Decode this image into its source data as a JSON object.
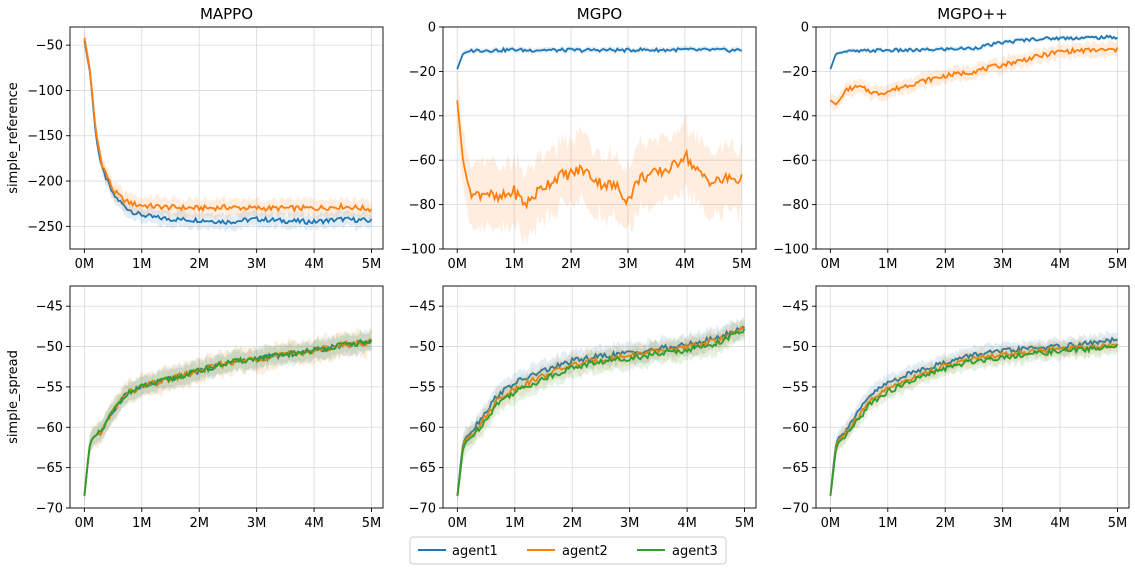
{
  "colors": {
    "agent1": "#1f77b4",
    "agent2": "#ff7f0e",
    "agent3": "#2ca02c"
  },
  "legend": {
    "items": [
      "agent1",
      "agent2",
      "agent3"
    ],
    "placement": "bottom-center"
  },
  "xticks": [
    "0M",
    "1M",
    "2M",
    "3M",
    "4M",
    "5M"
  ],
  "chart_data": [
    {
      "type": "line",
      "title": "MAPPO",
      "ylabel": "simple_reference",
      "xlim": [
        -0.25,
        5.2
      ],
      "ylim": [
        -275,
        -30
      ],
      "yticks": [
        -50,
        -100,
        -150,
        -200,
        -250
      ],
      "x": [
        0.0,
        0.1,
        0.2,
        0.3,
        0.5,
        0.7,
        0.9,
        1.2,
        1.5,
        2.0,
        2.5,
        3.0,
        3.5,
        4.0,
        4.5,
        5.0
      ],
      "series": [
        {
          "name": "agent1",
          "values": [
            -45,
            -80,
            -150,
            -185,
            -215,
            -228,
            -236,
            -240,
            -242,
            -243,
            -245,
            -242,
            -244,
            -245,
            -242,
            -244
          ],
          "band": 10
        },
        {
          "name": "agent2",
          "values": [
            -42,
            -78,
            -145,
            -180,
            -210,
            -222,
            -226,
            -228,
            -229,
            -230,
            -229,
            -230,
            -230,
            -230,
            -228,
            -231
          ],
          "band": 12
        }
      ]
    },
    {
      "type": "line",
      "title": "MGPO",
      "ylabel": "",
      "xlim": [
        -0.25,
        5.25
      ],
      "ylim": [
        -100,
        0
      ],
      "yticks": [
        0,
        -20,
        -40,
        -60,
        -80,
        -100
      ],
      "x": [
        0.0,
        0.1,
        0.2,
        0.3,
        0.5,
        0.7,
        1.0,
        1.2,
        1.5,
        1.8,
        2.0,
        2.2,
        2.5,
        2.8,
        3.0,
        3.2,
        3.5,
        3.8,
        4.0,
        4.2,
        4.5,
        4.8,
        5.0
      ],
      "series": [
        {
          "name": "agent1",
          "values": [
            -19,
            -12,
            -11,
            -10.5,
            -10.5,
            -10.5,
            -10.2,
            -10.5,
            -10.3,
            -10.5,
            -10.4,
            -10.5,
            -10.3,
            -10.4,
            -10.5,
            -10.2,
            -10.4,
            -10.3,
            -10.2,
            -10.4,
            -10.3,
            -10.5,
            -10.4
          ],
          "band": 1.5
        },
        {
          "name": "agent2",
          "values": [
            -33,
            -60,
            -72,
            -76,
            -74,
            -78,
            -74,
            -80,
            -72,
            -67,
            -66,
            -64,
            -70,
            -72,
            -78,
            -68,
            -66,
            -63,
            -57,
            -65,
            -70,
            -68,
            -69
          ],
          "band": 18
        }
      ]
    },
    {
      "type": "line",
      "title": "MGPO++",
      "ylabel": "",
      "xlim": [
        -0.25,
        5.2
      ],
      "ylim": [
        -100,
        0
      ],
      "yticks": [
        0,
        -20,
        -40,
        -60,
        -80,
        -100
      ],
      "x": [
        0.0,
        0.1,
        0.3,
        0.5,
        0.8,
        1.0,
        1.5,
        2.0,
        2.5,
        3.0,
        3.5,
        4.0,
        4.5,
        5.0
      ],
      "series": [
        {
          "name": "agent1",
          "values": [
            -19,
            -12,
            -11,
            -11,
            -10.5,
            -10.5,
            -10.5,
            -10,
            -9.5,
            -7,
            -5.5,
            -5,
            -4.8,
            -4.6
          ],
          "band": 1.2
        },
        {
          "name": "agent2",
          "values": [
            -33,
            -35,
            -28,
            -27,
            -30,
            -29,
            -25,
            -22,
            -20,
            -17,
            -14,
            -11,
            -10.5,
            -10.3
          ],
          "band": 4
        }
      ]
    },
    {
      "type": "line",
      "title": "",
      "ylabel": "simple_spread",
      "xlim": [
        -0.25,
        5.2
      ],
      "ylim": [
        -70,
        -42.5
      ],
      "yticks": [
        -45,
        -50,
        -55,
        -60,
        -65,
        -70
      ],
      "x": [
        0.0,
        0.05,
        0.1,
        0.15,
        0.2,
        0.3,
        0.5,
        0.7,
        1.0,
        1.5,
        2.0,
        2.5,
        3.0,
        3.5,
        4.0,
        4.5,
        5.0
      ],
      "series": [
        {
          "name": "agent1",
          "values": [
            -68.5,
            -65,
            -62,
            -61.3,
            -61,
            -60.5,
            -58,
            -56,
            -55,
            -54,
            -53,
            -52,
            -51.5,
            -51,
            -50.5,
            -49.8,
            -49.4
          ],
          "band": 1.5
        },
        {
          "name": "agent2",
          "values": [
            -68.5,
            -65,
            -62,
            -61.3,
            -61,
            -60.5,
            -58,
            -56,
            -55,
            -54,
            -53,
            -52,
            -51.5,
            -51,
            -50.5,
            -49.8,
            -49.4
          ],
          "band": 1.8
        },
        {
          "name": "agent3",
          "values": [
            -68.5,
            -65,
            -62,
            -61.3,
            -61,
            -60.5,
            -58,
            -56,
            -55,
            -54,
            -53,
            -52,
            -51.5,
            -51,
            -50.5,
            -49.8,
            -49.4
          ],
          "band": 1.5
        }
      ]
    },
    {
      "type": "line",
      "title": "",
      "ylabel": "",
      "xlim": [
        -0.25,
        5.2
      ],
      "ylim": [
        -70,
        -42.5
      ],
      "yticks": [
        -45,
        -50,
        -55,
        -60,
        -65,
        -70
      ],
      "x": [
        0.0,
        0.05,
        0.1,
        0.15,
        0.2,
        0.3,
        0.5,
        0.7,
        1.0,
        1.5,
        2.0,
        2.5,
        3.0,
        3.5,
        4.0,
        4.5,
        5.0
      ],
      "series": [
        {
          "name": "agent1",
          "values": [
            -68.5,
            -65,
            -62,
            -61.2,
            -61,
            -60,
            -58,
            -56,
            -54.5,
            -53,
            -51.8,
            -51.2,
            -50.8,
            -50.3,
            -49.8,
            -49,
            -47.6
          ],
          "band": 1.5
        },
        {
          "name": "agent2",
          "values": [
            -68.5,
            -65.5,
            -62.3,
            -61.5,
            -61.2,
            -60.5,
            -58.6,
            -56.6,
            -55.2,
            -53.6,
            -52.3,
            -51.6,
            -51.1,
            -50.6,
            -50.1,
            -49.3,
            -47.8
          ],
          "band": 1.5
        },
        {
          "name": "agent3",
          "values": [
            -68.5,
            -65.7,
            -62.6,
            -61.8,
            -61.5,
            -60.8,
            -59,
            -57,
            -55.6,
            -54,
            -52.6,
            -51.9,
            -51.4,
            -50.9,
            -50.4,
            -49.6,
            -48.0
          ],
          "band": 1.6
        }
      ]
    },
    {
      "type": "line",
      "title": "",
      "ylabel": "",
      "xlim": [
        -0.25,
        5.2
      ],
      "ylim": [
        -70,
        -42.5
      ],
      "yticks": [
        -45,
        -50,
        -55,
        -60,
        -65,
        -70
      ],
      "x": [
        0.0,
        0.05,
        0.1,
        0.15,
        0.2,
        0.3,
        0.5,
        0.7,
        1.0,
        1.5,
        2.0,
        2.5,
        3.0,
        3.5,
        4.0,
        4.5,
        5.0
      ],
      "series": [
        {
          "name": "agent1",
          "values": [
            -68.5,
            -65,
            -62,
            -61.2,
            -61,
            -60,
            -58,
            -56,
            -54.5,
            -53,
            -52,
            -51,
            -50.6,
            -50.2,
            -50,
            -49.6,
            -49.2
          ],
          "band": 1.2
        },
        {
          "name": "agent2",
          "values": [
            -68.5,
            -65.5,
            -62.3,
            -61.5,
            -61.2,
            -60.5,
            -58.6,
            -56.6,
            -55.2,
            -53.6,
            -52.4,
            -51.5,
            -51,
            -50.6,
            -50.3,
            -50,
            -49.8
          ],
          "band": 1.2
        },
        {
          "name": "agent3",
          "values": [
            -68.5,
            -65.7,
            -62.6,
            -61.8,
            -61.5,
            -60.8,
            -59,
            -57,
            -55.6,
            -54,
            -52.7,
            -51.8,
            -51.3,
            -50.9,
            -50.6,
            -50.3,
            -50.0
          ],
          "band": 1.2
        }
      ]
    }
  ]
}
